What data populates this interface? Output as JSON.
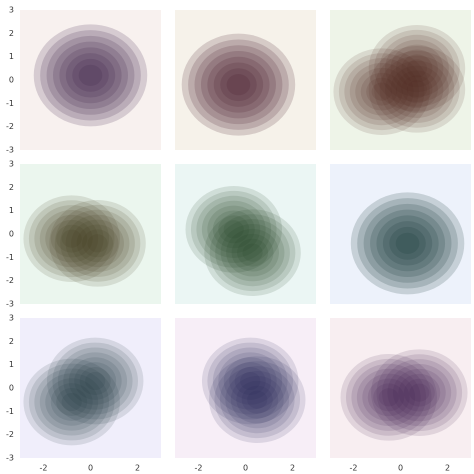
{
  "chart_data": {
    "type": "kde_grid",
    "xlim": [
      -3,
      3
    ],
    "ylim": [
      -3,
      3
    ],
    "xticks": [
      -2,
      0,
      2
    ],
    "yticks": [
      -3,
      -2,
      -1,
      0,
      1,
      2,
      3
    ],
    "panels": [
      {
        "color": "#3d1f4a",
        "background": "#f8f1ef",
        "peaks": [
          {
            "x": 0,
            "y": 0.2
          }
        ]
      },
      {
        "color": "#4a1a2a",
        "background": "#f6f2ea",
        "peaks": [
          {
            "x": -0.3,
            "y": -0.2
          }
        ]
      },
      {
        "color": "#4a2a20",
        "background": "#eef4e8",
        "peaks": [
          {
            "x": -0.8,
            "y": -0.5
          },
          {
            "x": 0.7,
            "y": 0.5
          },
          {
            "x": 0.7,
            "y": -0.4
          }
        ]
      },
      {
        "color": "#3c3318",
        "background": "#ebf6ee",
        "peaks": [
          {
            "x": -0.8,
            "y": -0.2
          },
          {
            "x": 0.3,
            "y": -0.4
          }
        ]
      },
      {
        "color": "#1f3a1f",
        "background": "#ebf6f4",
        "peaks": [
          {
            "x": -0.5,
            "y": 0.2
          },
          {
            "x": 0.3,
            "y": -0.8
          }
        ]
      },
      {
        "color": "#163a35",
        "background": "#edf2fb",
        "peaks": [
          {
            "x": 0.3,
            "y": -0.4
          }
        ]
      },
      {
        "color": "#1f3540",
        "background": "#f0eefb",
        "peaks": [
          {
            "x": -0.8,
            "y": -0.6
          },
          {
            "x": 0.2,
            "y": 0.3
          }
        ]
      },
      {
        "color": "#2a2a55",
        "background": "#f7eef7",
        "peaks": [
          {
            "x": 0.2,
            "y": 0.3
          },
          {
            "x": 0.5,
            "y": -0.5
          }
        ]
      },
      {
        "color": "#3a1f4a",
        "background": "#f8eef1",
        "peaks": [
          {
            "x": -0.5,
            "y": -0.4
          },
          {
            "x": 0.8,
            "y": -0.2
          }
        ]
      }
    ]
  }
}
